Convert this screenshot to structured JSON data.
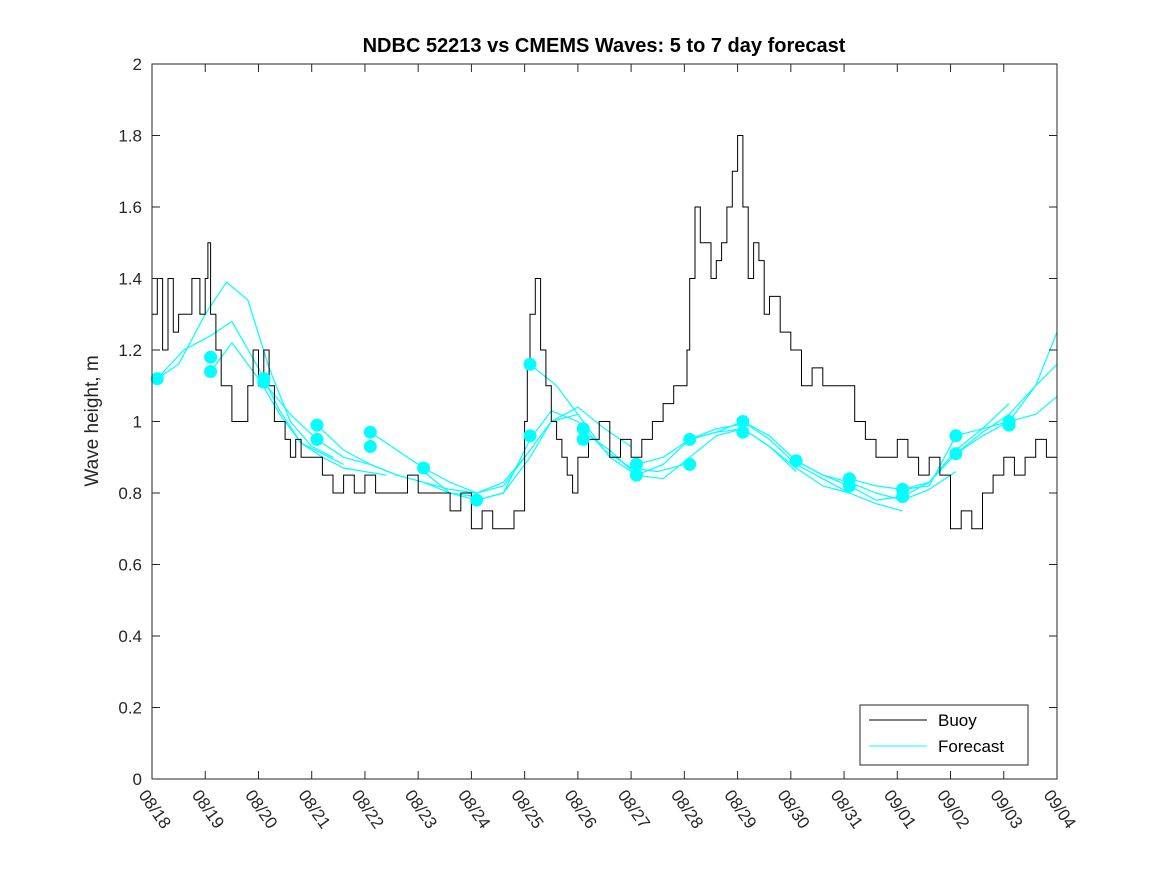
{
  "chart_data": {
    "type": "line",
    "title": "NDBC 52213 vs CMEMS Waves: 5 to 7 day forecast",
    "xlabel": "",
    "ylabel": "Wave height, m",
    "ylim": [
      0,
      2
    ],
    "yticks": [
      0,
      0.2,
      0.4,
      0.6,
      0.8,
      1,
      1.2,
      1.4,
      1.6,
      1.8,
      2
    ],
    "ytick_labels": [
      "0",
      "0.2",
      "0.4",
      "0.6",
      "0.8",
      "1",
      "1.2",
      "1.4",
      "1.6",
      "1.8",
      "2"
    ],
    "xlim": [
      0,
      17
    ],
    "xticks": [
      0,
      1,
      2,
      3,
      4,
      5,
      6,
      7,
      8,
      9,
      10,
      11,
      12,
      13,
      14,
      15,
      16,
      17
    ],
    "xtick_labels": [
      "08/18",
      "08/19",
      "08/20",
      "08/21",
      "08/22",
      "08/23",
      "08/24",
      "08/25",
      "08/26",
      "08/27",
      "08/28",
      "08/29",
      "08/30",
      "08/31",
      "09/01",
      "09/02",
      "09/03",
      "09/04"
    ],
    "x_unit": "days since 08/18",
    "grid": false,
    "legend": {
      "position": "bottom-right",
      "entries": [
        "Buoy",
        "Forecast"
      ]
    },
    "colors": {
      "buoy": "#000000",
      "forecast": "#00ffff",
      "axes": "#262626"
    },
    "buoy": {
      "x": [
        0.0,
        0.1,
        0.2,
        0.3,
        0.4,
        0.5,
        0.6,
        0.75,
        0.9,
        1.0,
        1.05,
        1.1,
        1.2,
        1.3,
        1.4,
        1.5,
        1.6,
        1.8,
        1.9,
        2.0,
        2.1,
        2.2,
        2.3,
        2.4,
        2.5,
        2.6,
        2.7,
        2.8,
        2.9,
        3.0,
        3.2,
        3.4,
        3.6,
        3.8,
        4.0,
        4.2,
        4.4,
        4.6,
        4.8,
        5.0,
        5.3,
        5.6,
        5.8,
        6.0,
        6.2,
        6.4,
        6.6,
        6.8,
        7.0,
        7.05,
        7.1,
        7.2,
        7.3,
        7.4,
        7.5,
        7.6,
        7.7,
        7.8,
        7.9,
        8.0,
        8.2,
        8.4,
        8.6,
        8.8,
        9.0,
        9.2,
        9.4,
        9.6,
        9.8,
        10.0,
        10.05,
        10.1,
        10.2,
        10.3,
        10.4,
        10.5,
        10.6,
        10.7,
        10.8,
        10.9,
        11.0,
        11.1,
        11.2,
        11.3,
        11.4,
        11.5,
        11.6,
        11.8,
        12.0,
        12.2,
        12.4,
        12.6,
        12.8,
        13.0,
        13.2,
        13.4,
        13.6,
        13.8,
        14.0,
        14.2,
        14.4,
        14.6,
        14.8,
        15.0,
        15.2,
        15.4,
        15.6,
        15.8,
        16.0,
        16.2,
        16.4,
        16.6,
        16.8,
        17.0
      ],
      "values": [
        1.3,
        1.4,
        1.2,
        1.4,
        1.25,
        1.3,
        1.3,
        1.4,
        1.3,
        1.4,
        1.5,
        1.3,
        1.2,
        1.1,
        1.1,
        1.0,
        1.0,
        1.1,
        1.2,
        1.1,
        1.2,
        1.1,
        1.0,
        1.0,
        0.95,
        0.9,
        0.95,
        0.9,
        0.9,
        0.9,
        0.85,
        0.8,
        0.85,
        0.8,
        0.85,
        0.8,
        0.8,
        0.8,
        0.85,
        0.8,
        0.8,
        0.75,
        0.8,
        0.7,
        0.75,
        0.7,
        0.7,
        0.75,
        1.0,
        1.15,
        1.3,
        1.4,
        1.2,
        1.1,
        1.0,
        0.95,
        0.9,
        0.85,
        0.8,
        0.9,
        0.95,
        1.0,
        0.9,
        0.95,
        0.9,
        0.95,
        1.0,
        1.05,
        1.1,
        1.1,
        1.2,
        1.4,
        1.6,
        1.5,
        1.5,
        1.4,
        1.45,
        1.5,
        1.6,
        1.7,
        1.8,
        1.6,
        1.4,
        1.5,
        1.45,
        1.3,
        1.35,
        1.25,
        1.2,
        1.1,
        1.15,
        1.1,
        1.1,
        1.1,
        1.0,
        0.95,
        0.9,
        0.9,
        0.95,
        0.9,
        0.85,
        0.9,
        0.85,
        0.7,
        0.75,
        0.7,
        0.8,
        0.85,
        0.9,
        0.85,
        0.9,
        0.95,
        0.9,
        0.9
      ]
    },
    "series": [
      {
        "name": "Forecast",
        "x": [
          0.1,
          0.5,
          1.0,
          1.4,
          1.8,
          2.2,
          2.6,
          3.0,
          3.4
        ],
        "values": [
          1.12,
          1.16,
          1.3,
          1.39,
          1.34,
          1.15,
          1.0,
          0.93,
          0.9
        ]
      },
      {
        "name": "Forecast",
        "x": [
          0.1,
          0.6,
          1.1,
          1.5,
          2.0,
          2.4,
          2.8,
          3.2,
          3.6
        ],
        "values": [
          1.12,
          1.2,
          1.24,
          1.28,
          1.15,
          1.03,
          0.94,
          0.91,
          0.88
        ]
      },
      {
        "name": "Forecast",
        "x": [
          1.1,
          1.5,
          2.0,
          2.4,
          2.8,
          3.2,
          3.6,
          4.0,
          4.4
        ],
        "values": [
          1.14,
          1.22,
          1.12,
          1.02,
          0.94,
          0.9,
          0.87,
          0.86,
          0.85
        ]
      },
      {
        "name": "Forecast",
        "x": [
          2.1,
          2.6,
          3.1,
          3.6,
          4.1,
          4.6,
          5.1,
          5.6,
          6.1
        ],
        "values": [
          1.11,
          1.02,
          0.95,
          0.9,
          0.88,
          0.85,
          0.83,
          0.8,
          0.79
        ]
      },
      {
        "name": "Forecast",
        "x": [
          3.1,
          3.6,
          4.1,
          4.6,
          5.1,
          5.6,
          6.1,
          6.6,
          7.0
        ],
        "values": [
          0.99,
          0.92,
          0.88,
          0.85,
          0.83,
          0.81,
          0.8,
          0.83,
          0.9
        ]
      },
      {
        "name": "Forecast",
        "x": [
          4.1,
          4.6,
          5.1,
          5.6,
          6.1,
          6.6,
          7.1,
          7.5,
          8.0
        ],
        "values": [
          0.97,
          0.92,
          0.87,
          0.83,
          0.8,
          0.82,
          0.92,
          1.0,
          1.02
        ]
      },
      {
        "name": "Forecast",
        "x": [
          5.1,
          5.6,
          6.1,
          6.6,
          7.1,
          7.5,
          8.0,
          8.5,
          9.0
        ],
        "values": [
          0.86,
          0.8,
          0.78,
          0.8,
          0.9,
          1.0,
          1.04,
          0.98,
          0.93
        ]
      },
      {
        "name": "Forecast",
        "x": [
          6.1,
          6.6,
          7.1,
          7.5,
          8.0,
          8.5,
          9.0,
          9.5,
          10.0
        ],
        "values": [
          0.78,
          0.8,
          0.95,
          1.03,
          1.0,
          0.92,
          0.87,
          0.86,
          0.88
        ]
      },
      {
        "name": "Forecast",
        "x": [
          7.1,
          7.6,
          8.1,
          8.6,
          9.1,
          9.6,
          10.1,
          10.6,
          11.0
        ],
        "values": [
          1.16,
          1.1,
          1.0,
          0.9,
          0.85,
          0.88,
          0.95,
          0.98,
          0.99
        ]
      },
      {
        "name": "Forecast",
        "x": [
          8.1,
          8.6,
          9.1,
          9.6,
          10.1,
          10.6,
          11.1,
          11.6,
          12.1
        ],
        "values": [
          0.97,
          0.92,
          0.85,
          0.84,
          0.9,
          0.96,
          0.98,
          0.93,
          0.86
        ]
      },
      {
        "name": "Forecast",
        "x": [
          9.1,
          9.6,
          10.1,
          10.6,
          11.1,
          11.6,
          12.1,
          12.6,
          13.1
        ],
        "values": [
          0.88,
          0.9,
          0.95,
          0.97,
          0.98,
          0.93,
          0.87,
          0.82,
          0.8
        ]
      },
      {
        "name": "Forecast",
        "x": [
          10.1,
          10.6,
          11.1,
          11.6,
          12.1,
          12.6,
          13.1,
          13.6,
          14.1
        ],
        "values": [
          0.95,
          0.97,
          1.0,
          0.95,
          0.88,
          0.84,
          0.8,
          0.77,
          0.75
        ]
      },
      {
        "name": "Forecast",
        "x": [
          11.1,
          11.6,
          12.1,
          12.6,
          13.1,
          13.6,
          14.1,
          14.6,
          15.1
        ],
        "values": [
          1.0,
          0.96,
          0.89,
          0.85,
          0.83,
          0.8,
          0.78,
          0.81,
          0.86
        ]
      },
      {
        "name": "Forecast",
        "x": [
          12.1,
          12.6,
          13.1,
          13.6,
          14.1,
          14.6,
          15.1,
          15.6,
          16.1
        ],
        "values": [
          0.89,
          0.85,
          0.82,
          0.78,
          0.79,
          0.83,
          0.92,
          0.98,
          1.05
        ]
      },
      {
        "name": "Forecast",
        "x": [
          13.1,
          13.6,
          14.1,
          14.6,
          15.1,
          15.6,
          16.1,
          16.6,
          17.0
        ],
        "values": [
          0.84,
          0.82,
          0.81,
          0.83,
          0.91,
          0.97,
          1.02,
          1.1,
          1.16
        ]
      },
      {
        "name": "Forecast",
        "x": [
          14.1,
          14.6,
          15.1,
          15.6,
          16.1,
          16.6,
          17.0
        ],
        "values": [
          0.81,
          0.82,
          0.96,
          0.98,
          1.0,
          1.1,
          1.25
        ]
      },
      {
        "name": "Forecast",
        "x": [
          15.1,
          15.6,
          16.1,
          16.6,
          17.0
        ],
        "values": [
          0.91,
          0.96,
          1.0,
          1.02,
          1.07
        ]
      }
    ],
    "forecast_markers": {
      "x": [
        0.1,
        1.1,
        1.1,
        2.1,
        2.1,
        3.1,
        3.1,
        4.1,
        4.1,
        5.1,
        6.1,
        7.1,
        7.1,
        8.1,
        8.1,
        9.1,
        9.1,
        10.1,
        10.1,
        11.1,
        11.1,
        12.1,
        13.1,
        13.1,
        14.1,
        14.1,
        15.1,
        15.1,
        16.1,
        16.1
      ],
      "values": [
        1.12,
        1.18,
        1.14,
        1.12,
        1.11,
        0.99,
        0.95,
        0.97,
        0.93,
        0.87,
        0.78,
        1.16,
        0.96,
        0.98,
        0.95,
        0.88,
        0.85,
        0.95,
        0.88,
        1.0,
        0.97,
        0.89,
        0.84,
        0.82,
        0.81,
        0.79,
        0.96,
        0.91,
        1.0,
        0.99
      ]
    }
  }
}
